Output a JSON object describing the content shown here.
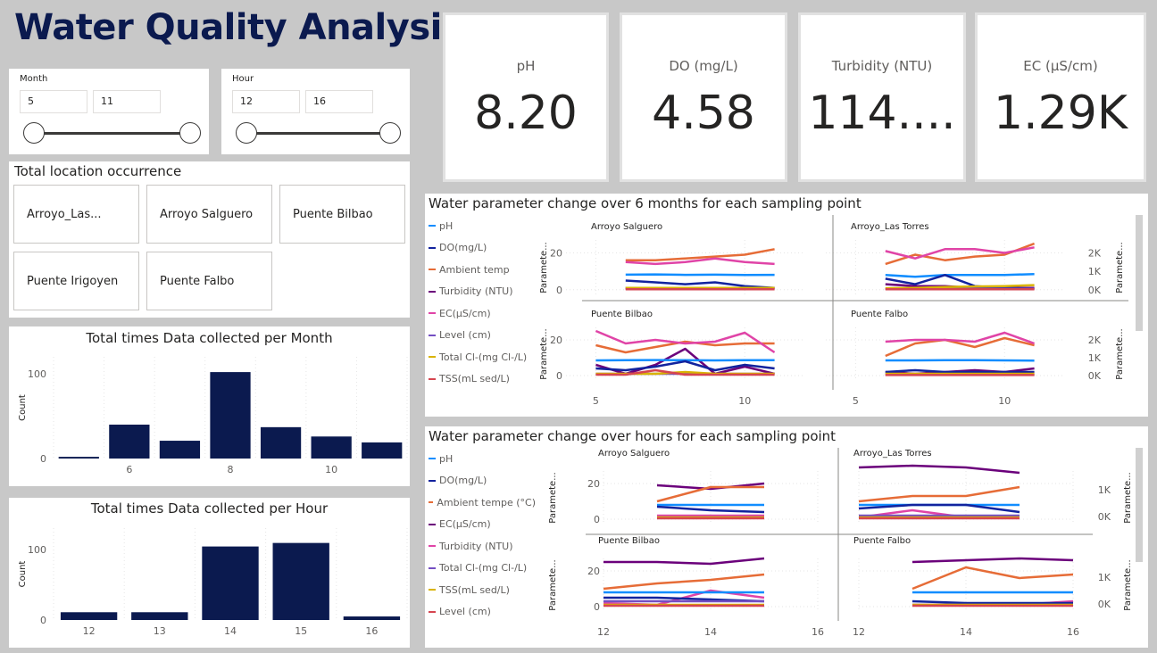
{
  "title": "Water Quality Analysis",
  "slicers": {
    "month": {
      "label": "Month",
      "from": "5",
      "to": "11"
    },
    "hour": {
      "label": "Hour",
      "from": "12",
      "to": "16"
    }
  },
  "kpis": [
    {
      "label": "pH",
      "value": "8.20"
    },
    {
      "label": "DO (mg/L)",
      "value": "4.58"
    },
    {
      "label": "Turbidity (NTU)",
      "value": "114...."
    },
    {
      "label": "EC (µS/cm)",
      "value": "1.29K"
    }
  ],
  "locations": {
    "title": "Total location occurrence",
    "items": [
      "Arroyo_Las...",
      "Arroyo Salguero",
      "Puente Bilbao",
      "Puente Irigoyen",
      "Puente Falbo"
    ]
  },
  "colors": {
    "navy": "#0b1a4f",
    "pH": "#118dff",
    "DO": "#12239e",
    "ambient": "#e66c37",
    "turbidity": "#6b007b",
    "EC": "#e044a7",
    "level": "#744ec2",
    "chloride": "#d9b300",
    "TSS": "#d64550"
  },
  "chart_data": [
    {
      "type": "bar",
      "title": "Total times Data collected per Month",
      "ylabel": "Count",
      "xlabel": "",
      "categories": [
        5,
        6,
        7,
        8,
        9,
        10,
        11
      ],
      "values": [
        2,
        40,
        21,
        102,
        37,
        26,
        19
      ],
      "xticks": [
        "6",
        "8",
        "10"
      ],
      "yticks": [
        "0",
        "100"
      ],
      "ylim": [
        0,
        120
      ]
    },
    {
      "type": "bar",
      "title": "Total times Data collected per Hour",
      "ylabel": "Count",
      "xlabel": "",
      "categories": [
        "12",
        "13",
        "14",
        "15",
        "16"
      ],
      "values": [
        11,
        11,
        104,
        109,
        5
      ],
      "yticks": [
        "0",
        "100"
      ],
      "ylim": [
        0,
        130
      ]
    },
    {
      "type": "line",
      "title": "Water parameter change over 6 months for each sampling point",
      "legend": [
        "pH",
        "DO(mg/L)",
        "Ambient temp",
        "Turbidity (NTU)",
        "EC(µS/cm)",
        "Level (cm)",
        "Total Cl-(mg Cl-/L)",
        "TSS(mL sed/L)"
      ],
      "legend_keys": [
        "pH",
        "DO",
        "ambient",
        "turbidity",
        "EC",
        "level",
        "chloride",
        "TSS"
      ],
      "ylabel_left": "Paramete...",
      "ylabel_right": "Paramete...",
      "xlim": [
        4,
        12
      ],
      "ylim_left": [
        -3,
        27
      ],
      "ylim_right": [
        -300,
        2700
      ],
      "xticks": [
        "5",
        "10"
      ],
      "yticks_left": [
        "0",
        "20"
      ],
      "yticks_right": [
        "0K",
        "1K",
        "2K"
      ],
      "panels": [
        {
          "name": "Arroyo Salguero",
          "x": [
            6,
            7,
            8,
            9,
            10,
            11
          ],
          "series": {
            "pH": [
              8.2,
              8.3,
              8.1,
              8.2,
              8.0,
              8.1
            ],
            "DO": [
              5,
              4,
              3,
              4,
              2,
              1
            ],
            "ambient": [
              16,
              16,
              17,
              18,
              19,
              22
            ],
            "turbidity": [
              1,
              1,
              1,
              1,
              1,
              1
            ],
            "EC": [
              15,
              14,
              15,
              17,
              15,
              14
            ],
            "level": [
              0.5,
              0.5,
              0.5,
              0.5,
              0.5,
              0.5
            ],
            "chloride": [
              1,
              1,
              1,
              1,
              1,
              1
            ],
            "TSS": [
              0.3,
              0.3,
              0.3,
              0.3,
              0.3,
              0.3
            ]
          }
        },
        {
          "name": "Arroyo_Las Torres",
          "x": [
            6,
            7,
            8,
            9,
            10,
            11
          ],
          "series": {
            "pH": [
              8,
              7,
              8,
              8,
              8,
              8.5
            ],
            "DO": [
              6,
              3,
              8,
              2,
              1,
              0.5
            ],
            "ambient": [
              14,
              19,
              16,
              18,
              19,
              25
            ],
            "turbidity": [
              3,
              2,
              2,
              1,
              1,
              1
            ],
            "EC": [
              21,
              17,
              22,
              22,
              20,
              23
            ],
            "level": [
              0.5,
              0.5,
              0.5,
              0.5,
              0.5,
              0.5
            ],
            "chloride": [
              0.8,
              1,
              1.5,
              1.8,
              2,
              2.5
            ],
            "TSS": [
              0.3,
              0.3,
              0.3,
              0.3,
              0.3,
              0.3
            ]
          }
        },
        {
          "name": "Puente Bilbao",
          "x": [
            5,
            6,
            7,
            8,
            9,
            10,
            11
          ],
          "series": {
            "pH": [
              8.5,
              8.6,
              8.7,
              8.6,
              8.5,
              8.6,
              8.6
            ],
            "DO": [
              4,
              3,
              5,
              8,
              3,
              6,
              4
            ],
            "ambient": [
              17,
              13,
              16,
              19,
              17,
              18,
              18
            ],
            "turbidity": [
              6,
              1,
              6,
              15,
              1,
              5,
              1
            ],
            "EC": [
              25,
              18,
              20,
              18,
              19,
              24,
              13
            ],
            "level": [
              1,
              1,
              1,
              1,
              1,
              1,
              1
            ],
            "chloride": [
              1,
              1,
              1,
              2,
              1,
              1,
              1
            ],
            "TSS": [
              0.5,
              0.5,
              3,
              0.5,
              0.5,
              0.5,
              0.5
            ]
          }
        },
        {
          "name": "Puente Falbo",
          "x": [
            6,
            7,
            8,
            9,
            10,
            11
          ],
          "series": {
            "pH": [
              8.5,
              8.5,
              8.6,
              8.6,
              8.5,
              8.4
            ],
            "DO": [
              2,
              3,
              2,
              2,
              2,
              2
            ],
            "ambient": [
              11,
              18,
              20,
              16,
              21,
              17
            ],
            "turbidity": [
              2,
              1,
              2,
              3,
              2,
              4
            ],
            "EC": [
              19,
              20,
              20,
              19,
              24,
              18
            ],
            "level": [
              0.5,
              0.5,
              0.5,
              0.5,
              0.5,
              0.5
            ],
            "chloride": [
              1,
              1,
              1,
              1,
              1,
              1
            ],
            "TSS": [
              0.3,
              0.3,
              0.3,
              0.3,
              0.3,
              0.3
            ]
          }
        }
      ]
    },
    {
      "type": "line",
      "title": "Water parameter change over hours for each sampling point",
      "legend": [
        "pH",
        "DO(mg/L)",
        "Ambient tempe (°C)",
        "EC(µS/cm)",
        "Turbidity (NTU)",
        "Total Cl-(mg Cl-/L)",
        "TSS(mL sed/L)",
        "Level (cm)"
      ],
      "legend_keys": [
        "pH",
        "DO",
        "ambient",
        "turbidity",
        "EC",
        "level",
        "chloride",
        "TSS"
      ],
      "ylabel_left": "Paramete...",
      "ylabel_right": "Paramete...",
      "xlim": [
        12,
        16
      ],
      "ylim_left": [
        -3,
        27
      ],
      "ylim_right": [
        -300,
        1700
      ],
      "xticks": [
        "12",
        "14",
        "16"
      ],
      "yticks_left": [
        "0",
        "20"
      ],
      "yticks_right": [
        "0K",
        "1K"
      ],
      "panels": [
        {
          "name": "Arroyo Salguero",
          "x": [
            13,
            14,
            15
          ],
          "series": {
            "pH": [
              8,
              8,
              8
            ],
            "DO": [
              7,
              5,
              4
            ],
            "ambient": [
              10,
              18,
              18
            ],
            "turbidity": [
              19,
              17,
              20
            ],
            "EC": [
              2,
              2,
              2
            ],
            "level": [
              1,
              1,
              1
            ],
            "chloride": [
              1,
              1,
              1
            ],
            "TSS": [
              0.5,
              0.5,
              0.5
            ]
          }
        },
        {
          "name": "Arroyo_Las Torres",
          "x": [
            12,
            13,
            14,
            15
          ],
          "series": {
            "pH": [
              8,
              8,
              8,
              8
            ],
            "DO": [
              6,
              8,
              8,
              4
            ],
            "ambient": [
              10,
              13,
              13,
              18
            ],
            "turbidity": [
              29,
              30,
              29,
              26
            ],
            "EC": [
              1,
              5,
              1,
              1
            ],
            "level": [
              2,
              2,
              2,
              2
            ],
            "chloride": [
              1,
              1,
              1,
              1
            ],
            "TSS": [
              0.5,
              0.5,
              0.5,
              0.5
            ]
          }
        },
        {
          "name": "Puente Bilbao",
          "x": [
            12,
            13,
            14,
            15
          ],
          "series": {
            "pH": [
              8,
              8,
              8,
              8
            ],
            "DO": [
              5,
              5,
              4,
              3
            ],
            "ambient": [
              10,
              13,
              15,
              18
            ],
            "turbidity": [
              25,
              25,
              24,
              27
            ],
            "EC": [
              2,
              1,
              9,
              5
            ],
            "level": [
              3,
              3,
              3,
              3
            ],
            "chloride": [
              1,
              1,
              1,
              1
            ],
            "TSS": [
              0.5,
              0.5,
              0.5,
              0.5
            ]
          }
        },
        {
          "name": "Puente Falbo",
          "x": [
            13,
            14,
            15,
            16
          ],
          "series": {
            "pH": [
              8,
              8,
              8,
              8
            ],
            "DO": [
              3,
              2,
              2,
              2
            ],
            "ambient": [
              10,
              22,
              16,
              18
            ],
            "turbidity": [
              25,
              26,
              27,
              26
            ],
            "EC": [
              1,
              1,
              1,
              3
            ],
            "level": [
              1,
              1,
              1,
              1
            ],
            "chloride": [
              1,
              1,
              1,
              1
            ],
            "TSS": [
              0.5,
              0.5,
              0.5,
              0.5
            ]
          }
        }
      ]
    }
  ]
}
